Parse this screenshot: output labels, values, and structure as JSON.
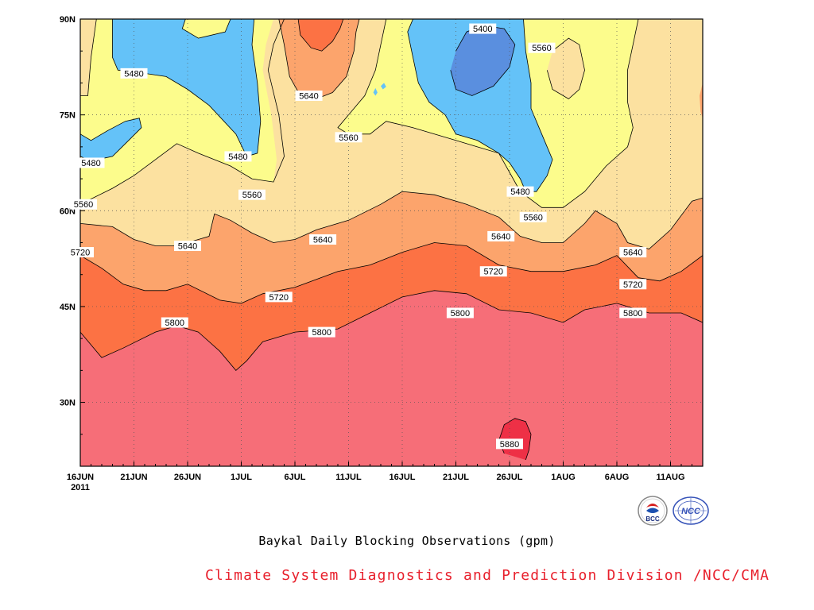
{
  "caption": "Baykal Daily Blocking Observations (gpm)",
  "credit": "Climate System Diagnostics and Prediction Division /NCC/CMA",
  "logos": {
    "left": "BCC",
    "right": "NCC"
  },
  "chart_data": {
    "type": "heatmap",
    "title": "",
    "xlabel": "",
    "ylabel": "",
    "x_ticks": [
      "16JUN",
      "21JUN",
      "26JUN",
      "1JUL",
      "6JUL",
      "11JUL",
      "16JUL",
      "21JUL",
      "26JUL",
      "1AUG",
      "6AUG",
      "11AUG"
    ],
    "x_year_label": "2011",
    "x_range_days": [
      0,
      58
    ],
    "y_ticks": [
      "30N",
      "45N",
      "60N",
      "75N",
      "90N"
    ],
    "y_range_deg": [
      20,
      90
    ],
    "contour_levels": [
      5400,
      5480,
      5560,
      5640,
      5720,
      5800,
      5880
    ],
    "fill_colors": {
      "below_5400": "#5a8fdf",
      "5400_5480": "#64c2f8",
      "5480_5560": "#fcfc8c",
      "5560_5640": "#fce1a0",
      "5640_5720": "#fca46c",
      "5720_5800": "#fc7244",
      "5800_5880": "#f66e78",
      "above_5880": "#ee3046"
    },
    "contour_labels": [
      {
        "text": "5400",
        "day": 37.5,
        "lat": 88.5
      },
      {
        "text": "5480",
        "day": 5,
        "lat": 81.5
      },
      {
        "text": "5480",
        "day": 1,
        "lat": 67.5
      },
      {
        "text": "5480",
        "day": 14.7,
        "lat": 68.5
      },
      {
        "text": "5480",
        "day": 41,
        "lat": 63
      },
      {
        "text": "5560",
        "day": 43,
        "lat": 85.5
      },
      {
        "text": "5560",
        "day": 25,
        "lat": 71.5
      },
      {
        "text": "5560",
        "day": 16,
        "lat": 62.5
      },
      {
        "text": "5560",
        "day": 0.3,
        "lat": 61
      },
      {
        "text": "5560",
        "day": 42.2,
        "lat": 59
      },
      {
        "text": "5640",
        "day": 21.3,
        "lat": 78
      },
      {
        "text": "5640",
        "day": 22.6,
        "lat": 55.5
      },
      {
        "text": "5640",
        "day": 10,
        "lat": 54.5
      },
      {
        "text": "5640",
        "day": 39.2,
        "lat": 56
      },
      {
        "text": "5640",
        "day": 51.5,
        "lat": 53.5
      },
      {
        "text": "5720",
        "day": 0,
        "lat": 53.5
      },
      {
        "text": "5720",
        "day": 18.5,
        "lat": 46.5
      },
      {
        "text": "5720",
        "day": 38.5,
        "lat": 50.5
      },
      {
        "text": "5720",
        "day": 51.5,
        "lat": 48.5
      },
      {
        "text": "5800",
        "day": 8.8,
        "lat": 42.5
      },
      {
        "text": "5800",
        "day": 22.5,
        "lat": 41
      },
      {
        "text": "5800",
        "day": 35.4,
        "lat": 44
      },
      {
        "text": "5800",
        "day": 51.5,
        "lat": 44
      },
      {
        "text": "5880",
        "day": 40,
        "lat": 23.5
      }
    ]
  }
}
